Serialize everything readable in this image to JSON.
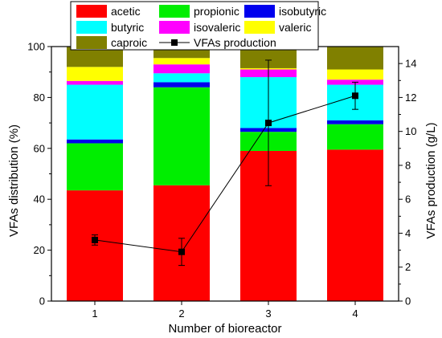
{
  "chart_data": {
    "type": "bar",
    "stacked": true,
    "categories": [
      "1",
      "2",
      "3",
      "4"
    ],
    "xlabel": "Number of bioreactor",
    "ylabel": "VFAs distribution (%)",
    "y2label": "VFAs production (g/L)",
    "ylim": [
      0,
      100
    ],
    "y2lim": [
      0,
      15
    ],
    "yticks": [
      0,
      20,
      40,
      60,
      80,
      100
    ],
    "y2ticks": [
      0,
      2,
      4,
      6,
      8,
      10,
      12,
      14
    ],
    "legend_position": "top",
    "series": [
      {
        "name": "acetic",
        "color": "#ff0000",
        "values": [
          43.5,
          45.5,
          59,
          59.5
        ]
      },
      {
        "name": "propionic",
        "color": "#00ee00",
        "values": [
          18.5,
          38.5,
          7.5,
          10
        ]
      },
      {
        "name": "isobutyric",
        "color": "#0000ee",
        "values": [
          1.5,
          2,
          1.5,
          1.5
        ]
      },
      {
        "name": "butyric",
        "color": "#00ffff",
        "values": [
          21.5,
          3.5,
          20,
          14
        ]
      },
      {
        "name": "isovaleric",
        "color": "#ff00ff",
        "values": [
          1.5,
          3.5,
          3,
          2
        ]
      },
      {
        "name": "valeric",
        "color": "#ffff00",
        "values": [
          5.5,
          2.5,
          0.5,
          4
        ]
      },
      {
        "name": "caproic",
        "color": "#808000",
        "values": [
          8,
          4.5,
          8.5,
          9
        ]
      }
    ],
    "line_series": {
      "name": "VFAs production",
      "color": "#000000",
      "axis": "right",
      "values": [
        3.6,
        2.9,
        10.5,
        12.1
      ],
      "errors": [
        0.3,
        0.8,
        3.7,
        0.8
      ]
    }
  }
}
